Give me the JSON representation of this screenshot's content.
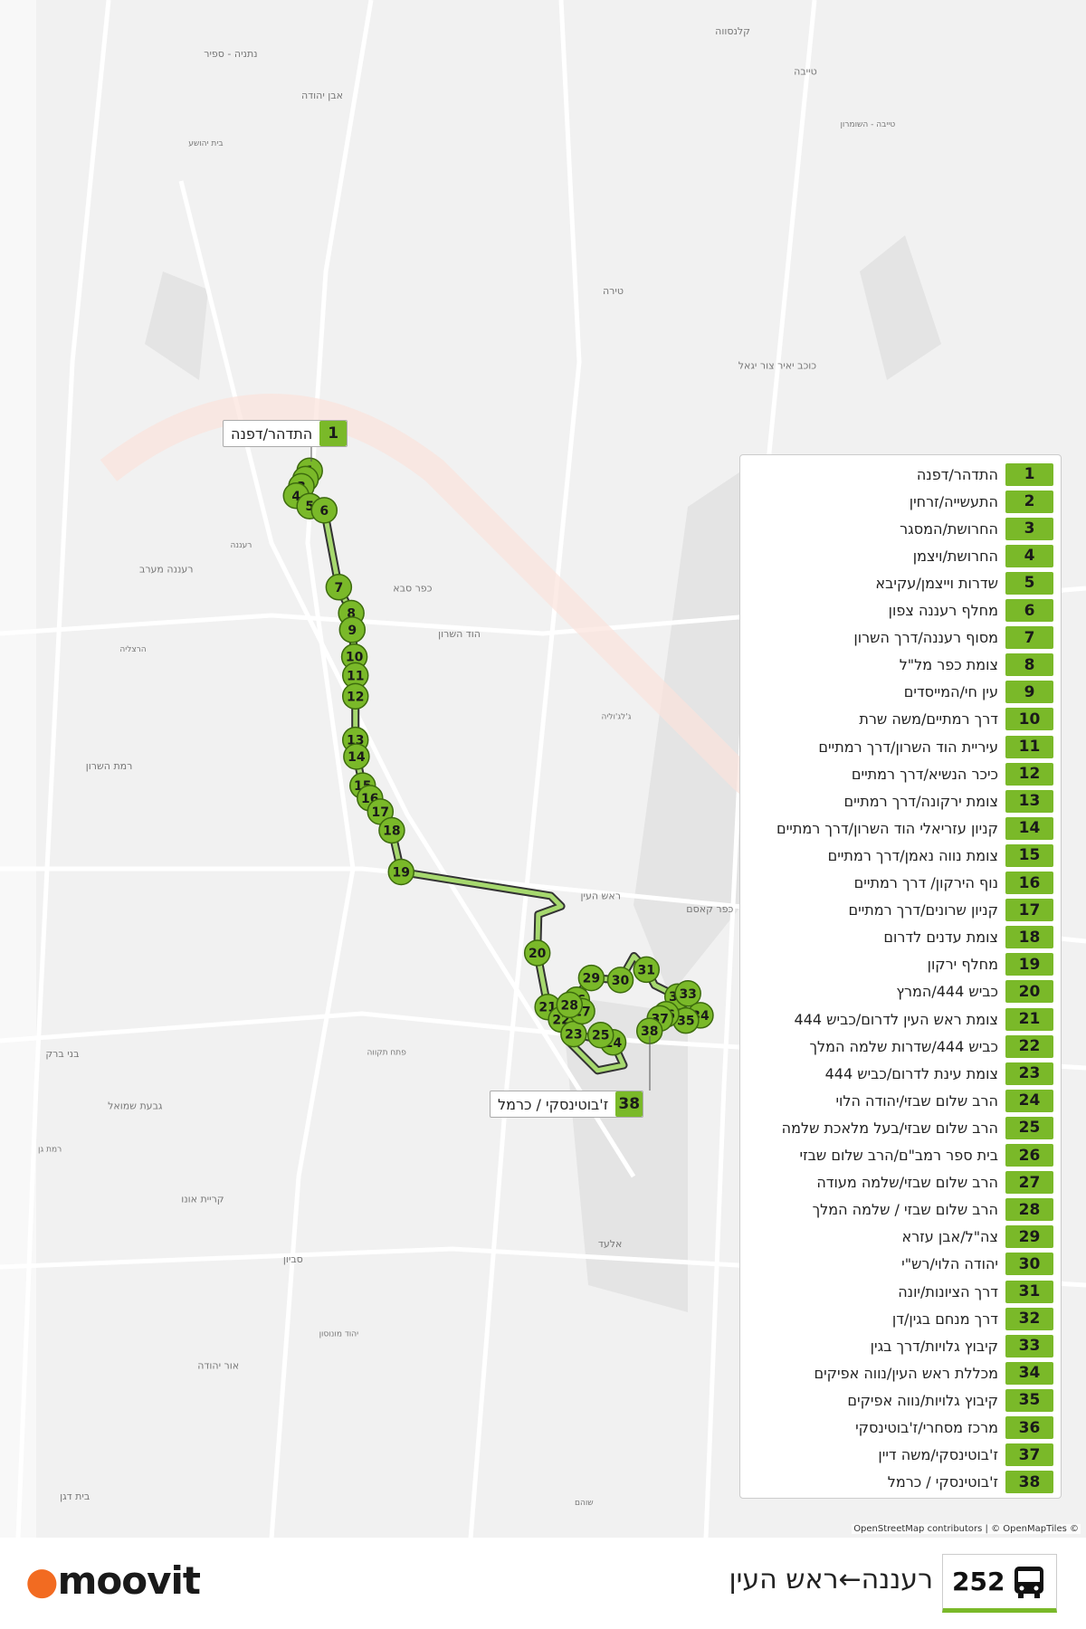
{
  "route": {
    "number": "252",
    "title": "רעננה←ראש העין"
  },
  "logo": "moovit",
  "attribution": "OpenStreetMap contributors | © OpenMapTiles ©",
  "map_labels": [
    "קלנסווה",
    "טייבה",
    "טייבה - השומרון",
    "נתניה - ספיר",
    "אבן יהודה",
    "בית יהושע",
    "טירה",
    "כוכב יאיר צור יגאל",
    "רעננה",
    "רעננה מערב",
    "כפר סבא",
    "הרצליה",
    "הוד השרון",
    "רמת השרון",
    "ג'לג'וליה",
    "כפר קאסם",
    "ראש העין",
    "פתח תקווה",
    "בני ברק",
    "גבעת שמואל",
    "רמת גן",
    "קריית אונו",
    "סביון",
    "יהוד מונוסון",
    "אור יהודה",
    "אלעד",
    "שוהם",
    "בית דגן"
  ],
  "stops": [
    {
      "number": "1",
      "name": "התדהר/דפנה"
    },
    {
      "number": "2",
      "name": "התעשייה/זרחין"
    },
    {
      "number": "3",
      "name": "החרושת/המסגר"
    },
    {
      "number": "4",
      "name": "החרושת/ויצמן"
    },
    {
      "number": "5",
      "name": "שדרות וייצמן/עקיבא"
    },
    {
      "number": "6",
      "name": "מחלף רעננה צפון"
    },
    {
      "number": "7",
      "name": "מסוף רעננה/דרך השרון"
    },
    {
      "number": "8",
      "name": "צומת כפר מל\"ל"
    },
    {
      "number": "9",
      "name": "עין חי/המייסדים"
    },
    {
      "number": "10",
      "name": "דרך רמתיים/משה שרת"
    },
    {
      "number": "11",
      "name": "עיריית הוד השרון/דרך רמתיים"
    },
    {
      "number": "12",
      "name": "כיכר הנשיא/דרך רמתיים"
    },
    {
      "number": "13",
      "name": "צומת ירקונה/דרך רמתיים"
    },
    {
      "number": "14",
      "name": "קניון עזריאלי הוד השרון/דרך רמתיים"
    },
    {
      "number": "15",
      "name": "צומת נווה נאמן/דרך רמתיים"
    },
    {
      "number": "16",
      "name": "נוף הירקון/ דרך רמתיים"
    },
    {
      "number": "17",
      "name": "קניון שרונים/דרך רמתיים"
    },
    {
      "number": "18",
      "name": "צומת עדנים לדרום"
    },
    {
      "number": "19",
      "name": "מחלף ירקון"
    },
    {
      "number": "20",
      "name": "כביש 444/המרץ"
    },
    {
      "number": "21",
      "name": "צומת ראש העין לדרום/כביש 444"
    },
    {
      "number": "22",
      "name": "כביש 444/שדרות שלמה המלך"
    },
    {
      "number": "23",
      "name": "צומת עינת לדרום/כביש 444"
    },
    {
      "number": "24",
      "name": "הרב שלום שבזי/יהודה הלוי"
    },
    {
      "number": "25",
      "name": "הרב שלום שבזי/בעל מלאכת שלמה"
    },
    {
      "number": "26",
      "name": "בית ספר רמב\"ם/הרב שלום שבזי"
    },
    {
      "number": "27",
      "name": "הרב שלום שבזי/שלמה מעודה"
    },
    {
      "number": "28",
      "name": "הרב שלום שבזי / שלמה המלך"
    },
    {
      "number": "29",
      "name": "צה\"ל/אבן עזרא"
    },
    {
      "number": "30",
      "name": "יהודה הלוי/רש\"י"
    },
    {
      "number": "31",
      "name": "דרך הציונות/יונה"
    },
    {
      "number": "32",
      "name": "דרך מנחם בגין/דן"
    },
    {
      "number": "33",
      "name": "קיבוץ גלויות/דרך בגין"
    },
    {
      "number": "34",
      "name": "מכללת ראש העין/נווה אפיקים"
    },
    {
      "number": "35",
      "name": "קיבוץ גלויות/נווה אפיקים"
    },
    {
      "number": "36",
      "name": "מרכז מסחרי/ז'בוטינסקי"
    },
    {
      "number": "37",
      "name": "ז'בוטינסקי/משה דיין"
    },
    {
      "number": "38",
      "name": "ז'בוטינסקי / כרמל"
    }
  ]
}
